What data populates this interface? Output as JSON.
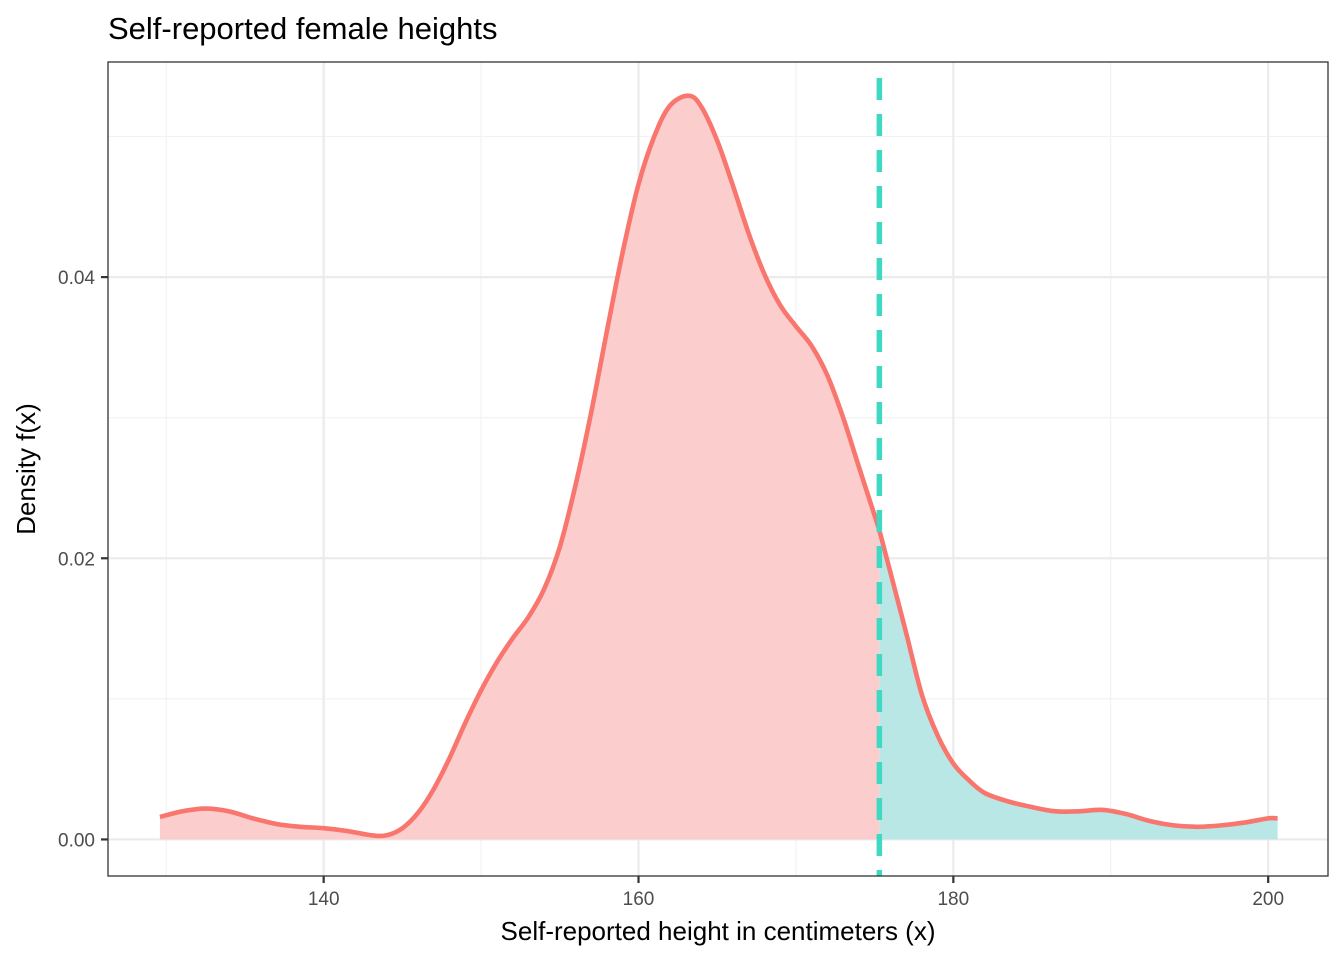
{
  "chart_data": {
    "type": "area",
    "title": "Self-reported female heights",
    "xlabel": "Self-reported height in centimeters (x)",
    "ylabel": "Density f(x)",
    "xlim": [
      126.3,
      203.8
    ],
    "ylim": [
      -0.0026,
      0.0553
    ],
    "x_ticks": [
      140,
      160,
      180,
      200
    ],
    "x_tick_labels": [
      "140",
      "160",
      "180",
      "200"
    ],
    "y_ticks": [
      0.0,
      0.02,
      0.04
    ],
    "y_tick_labels": [
      "0.00",
      "0.02",
      "0.04"
    ],
    "grid": true,
    "legend": "none",
    "cutoff": {
      "x": 175.3,
      "label": "cutoff",
      "style": "dashed",
      "color": "#3fd9c3"
    },
    "series": [
      {
        "name": "density",
        "color": "#f8766d",
        "fill_below_cutoff": "#fbcdcd",
        "fill_above_cutoff": "#b9e7e6",
        "x": [
          129.6,
          131.0,
          132.5,
          134.0,
          135.5,
          137.0,
          138.5,
          140.0,
          141.5,
          143.0,
          144.0,
          145.0,
          146.0,
          147.0,
          148.0,
          149.0,
          150.0,
          151.0,
          152.0,
          153.0,
          154.0,
          155.0,
          156.0,
          157.0,
          158.0,
          159.0,
          160.0,
          161.0,
          162.0,
          163.2,
          164.0,
          165.0,
          166.0,
          167.0,
          168.0,
          169.0,
          170.0,
          171.0,
          172.0,
          173.0,
          174.0,
          175.3,
          176.0,
          177.0,
          178.0,
          179.0,
          180.0,
          181.0,
          182.0,
          183.5,
          185.0,
          186.5,
          188.0,
          189.5,
          191.0,
          192.5,
          194.0,
          195.5,
          197.0,
          198.5,
          200.0,
          200.6
        ],
        "y": [
          0.0016,
          0.002,
          0.0022,
          0.002,
          0.0015,
          0.0011,
          0.0009,
          0.0008,
          0.0006,
          0.0003,
          0.0003,
          0.0008,
          0.0019,
          0.0036,
          0.0058,
          0.0083,
          0.0106,
          0.0126,
          0.0143,
          0.0158,
          0.0178,
          0.0208,
          0.0252,
          0.0304,
          0.0362,
          0.0418,
          0.0466,
          0.05,
          0.0522,
          0.0529,
          0.0521,
          0.0497,
          0.0465,
          0.0431,
          0.0402,
          0.038,
          0.0365,
          0.0351,
          0.033,
          0.03,
          0.0265,
          0.022,
          0.019,
          0.0147,
          0.0103,
          0.0074,
          0.0054,
          0.0042,
          0.0033,
          0.0027,
          0.0023,
          0.002,
          0.002,
          0.0021,
          0.0018,
          0.0013,
          0.001,
          0.0009,
          0.001,
          0.0012,
          0.0015,
          0.0015
        ]
      }
    ]
  }
}
